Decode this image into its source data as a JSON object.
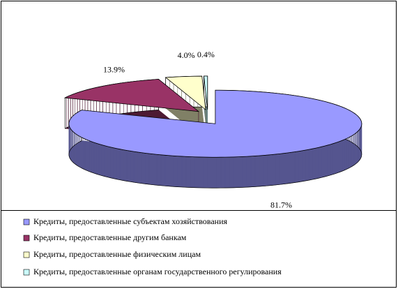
{
  "chart_data": {
    "type": "pie",
    "categories": [
      "Кредиты, предоставленные субъектам хозяйствования",
      "Кредиты, предоставленные другим банкам",
      "Кредиты, предоставленные физическим лицам",
      "Кредиты, предоставленные органам государственного регулирования"
    ],
    "values": [
      81.7,
      13.9,
      4.0,
      0.4
    ],
    "value_labels": [
      "81.7%",
      "13.9%",
      "4.0%",
      "0.4%"
    ],
    "colors": [
      "#9999ff",
      "#993366",
      "#ffffcc",
      "#ccffff"
    ],
    "side_colors": [
      "#55558f",
      "#4d1a33",
      "#808066",
      "#668080"
    ]
  }
}
